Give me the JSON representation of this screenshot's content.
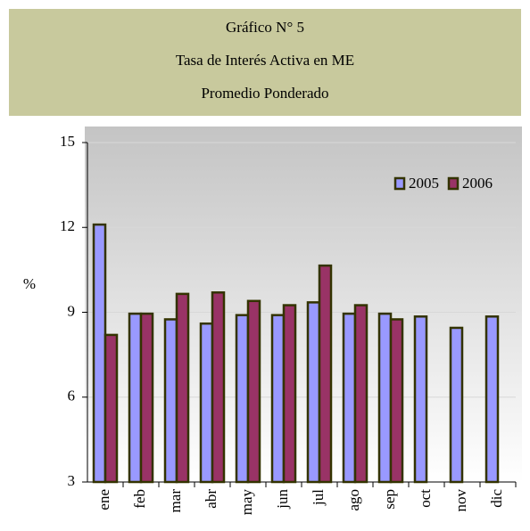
{
  "chart_data": {
    "type": "bar",
    "title_lines": [
      "Gráfico N° 5",
      "Tasa de Interés Activa en ME",
      "Promedio Ponderado"
    ],
    "y_label": "%",
    "categories": [
      "ene",
      "feb",
      "mar",
      "abr",
      "may",
      "jun",
      "jul",
      "ago",
      "sep",
      "oct",
      "nov",
      "dic"
    ],
    "series": [
      {
        "name": "2005",
        "color": "#9999ff",
        "values": [
          12.1,
          8.95,
          8.75,
          8.6,
          8.9,
          8.9,
          9.35,
          8.95,
          8.95,
          8.85,
          8.45,
          8.85
        ]
      },
      {
        "name": "2006",
        "color": "#993366",
        "values": [
          8.2,
          8.95,
          9.65,
          9.7,
          9.4,
          9.25,
          10.65,
          9.25,
          8.75,
          null,
          null,
          null
        ]
      }
    ],
    "ylim": [
      3,
      15
    ],
    "yticks": [
      3,
      6,
      9,
      12,
      15
    ],
    "grid": true,
    "legend": "top-right"
  }
}
